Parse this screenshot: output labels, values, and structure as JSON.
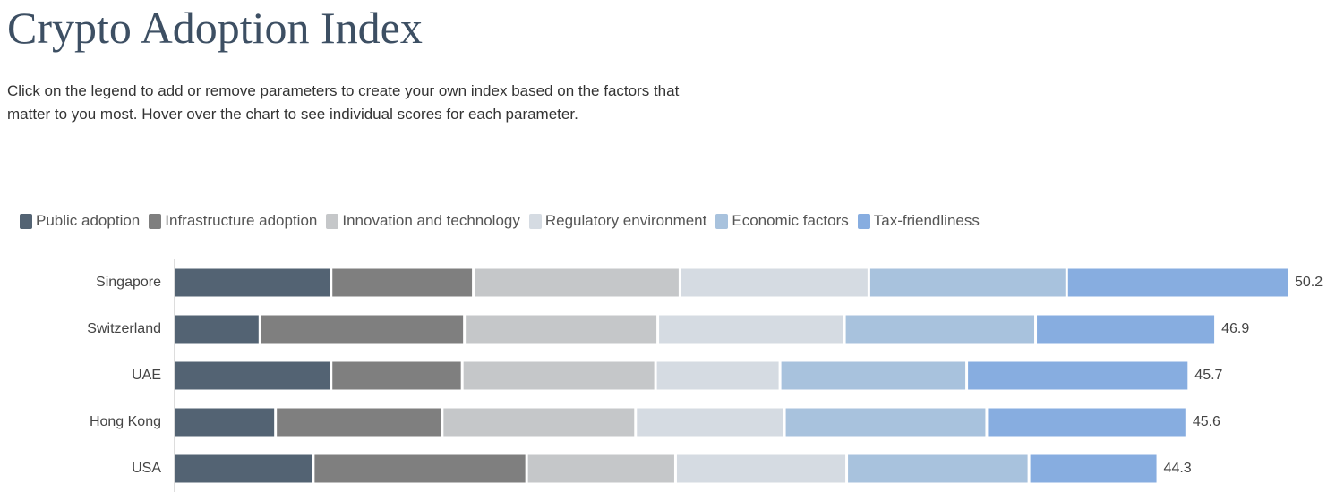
{
  "chart_data": {
    "type": "bar",
    "orientation": "horizontal",
    "stacked": true,
    "title": "Crypto Adoption Index",
    "subtitle": "Click on the legend to add or remove parameters to create your own index based on the factors that matter to you most. Hover over the chart to see individual scores for each parameter.",
    "legend": "top-left",
    "categories": [
      "Singapore",
      "Switzerland",
      "UAE",
      "Hong Kong",
      "USA"
    ],
    "series": [
      {
        "name": "Public adoption",
        "color": "#536373",
        "values": [
          7.1,
          3.9,
          7.1,
          4.6,
          6.3
        ]
      },
      {
        "name": "Infrastructure adoption",
        "color": "#7f7f7f",
        "values": [
          6.4,
          9.2,
          5.9,
          7.5,
          9.6
        ]
      },
      {
        "name": "Innovation and technology",
        "color": "#c5c7c9",
        "values": [
          9.3,
          8.7,
          8.7,
          8.7,
          6.7
        ]
      },
      {
        "name": "Regulatory environment",
        "color": "#d5dbe2",
        "values": [
          8.5,
          8.4,
          5.6,
          6.7,
          7.7
        ]
      },
      {
        "name": "Economic factors",
        "color": "#a8c2dd",
        "values": [
          8.9,
          8.6,
          8.4,
          9.1,
          8.2
        ]
      },
      {
        "name": "Tax-friendliness",
        "color": "#87ade0",
        "values": [
          10.0,
          8.1,
          10.0,
          9.0,
          5.8
        ]
      }
    ],
    "totals": [
      50.2,
      46.9,
      45.7,
      45.6,
      44.3
    ]
  }
}
